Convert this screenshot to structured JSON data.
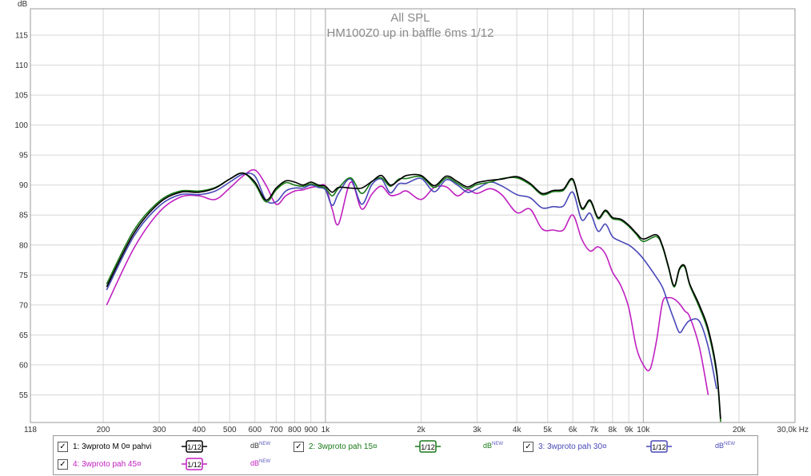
{
  "chart_data": {
    "type": "line",
    "title": "All SPL",
    "subtitle": "HM100Z0 up in baffle 6ms 1/12",
    "ylabel": "dB",
    "x_unit": "Hz",
    "xscale": "log",
    "xlim": [
      118,
      30000
    ],
    "ylim": [
      50,
      120
    ],
    "grid": true,
    "legend_position": "bottom",
    "y_ticks": [
      "115",
      "110",
      "105",
      "100",
      "95",
      "90",
      "85",
      "80",
      "75",
      "70",
      "65",
      "60",
      "55"
    ],
    "x_ticks": [
      {
        "v": 118,
        "label": "118"
      },
      {
        "v": 200,
        "label": "200"
      },
      {
        "v": 300,
        "label": "300"
      },
      {
        "v": 400,
        "label": "400"
      },
      {
        "v": 500,
        "label": "500"
      },
      {
        "v": 600,
        "label": "600"
      },
      {
        "v": 700,
        "label": "700"
      },
      {
        "v": 800,
        "label": "800"
      },
      {
        "v": 900,
        "label": "900"
      },
      {
        "v": 1000,
        "label": "1k"
      },
      {
        "v": 2000,
        "label": "2k"
      },
      {
        "v": 3000,
        "label": "3k"
      },
      {
        "v": 4000,
        "label": "4k"
      },
      {
        "v": 5000,
        "label": "5k"
      },
      {
        "v": 6000,
        "label": "6k"
      },
      {
        "v": 7000,
        "label": "7k"
      },
      {
        "v": 8000,
        "label": "8k"
      },
      {
        "v": 9000,
        "label": "9k"
      },
      {
        "v": 10000,
        "label": "10k"
      },
      {
        "v": 20000,
        "label": "20k"
      },
      {
        "v": 30000,
        "label": "30,0k Hz"
      }
    ],
    "series": [
      {
        "name": "1: 3wproto M 0¤ pahvi",
        "color": "#000000",
        "x": [
          205,
          250,
          300,
          350,
          400,
          450,
          500,
          550,
          600,
          650,
          700,
          750,
          800,
          850,
          900,
          950,
          1000,
          1050,
          1100,
          1200,
          1300,
          1400,
          1500,
          1600,
          1700,
          1800,
          2000,
          2200,
          2400,
          2600,
          2800,
          3000,
          3300,
          3600,
          4000,
          4400,
          4800,
          5200,
          5600,
          6000,
          6400,
          6800,
          7200,
          7600,
          8000,
          8500,
          9000,
          9500,
          10000,
          11000,
          11500,
          12000,
          12500,
          13000,
          13500,
          14000,
          15000,
          16000,
          17000,
          17500
        ],
        "y": [
          73,
          82,
          87,
          88.8,
          88.8,
          89.5,
          91,
          92,
          90.5,
          87.5,
          89.5,
          90.7,
          90.5,
          90,
          90.5,
          90,
          89.8,
          88.8,
          89.6,
          89.5,
          89.5,
          90.6,
          91.6,
          90,
          90.8,
          91.6,
          91.6,
          89.9,
          91.5,
          90.6,
          89.7,
          90.4,
          90.8,
          91,
          91.4,
          90.3,
          88.6,
          89.1,
          89.3,
          91,
          86.2,
          87.5,
          84.6,
          85.8,
          84.6,
          84.3,
          83.3,
          82,
          81,
          81.7,
          79.8,
          76.4,
          73.2,
          76.1,
          76.5,
          73.5,
          70,
          66,
          59,
          51
        ]
      },
      {
        "name": "2: 3wproto pah 15¤",
        "color": "#1a7a1a",
        "x": [
          205,
          250,
          300,
          350,
          400,
          450,
          500,
          550,
          600,
          650,
          700,
          750,
          800,
          850,
          900,
          950,
          1000,
          1050,
          1100,
          1200,
          1300,
          1400,
          1500,
          1600,
          1700,
          1800,
          2000,
          2200,
          2400,
          2600,
          2800,
          3000,
          3300,
          3600,
          4000,
          4400,
          4800,
          5200,
          5600,
          6000,
          6400,
          6800,
          7200,
          7600,
          8000,
          8500,
          9000,
          9500,
          10000,
          11000,
          11500,
          12000,
          12500,
          13000,
          13500,
          14000,
          15000,
          16000,
          17000,
          17500
        ],
        "y": [
          73.5,
          82.5,
          87.3,
          89,
          89,
          89.6,
          91,
          92,
          90.2,
          87.2,
          89.2,
          90.4,
          90,
          89.8,
          90.2,
          89.8,
          89.5,
          88.2,
          89.5,
          91.2,
          88.6,
          90.6,
          91.2,
          89.8,
          91,
          91.1,
          91.4,
          89.6,
          91.2,
          90.3,
          89.4,
          90.1,
          90.5,
          91.1,
          91.2,
          90.1,
          88.4,
          88.9,
          89.1,
          90.8,
          86,
          87.3,
          84.4,
          85.6,
          84.4,
          84.1,
          83.1,
          81.8,
          80.6,
          81.4,
          79.6,
          76.2,
          73,
          75.9,
          76.3,
          73.3,
          69.6,
          65.5,
          58.5,
          50.5
        ]
      },
      {
        "name": "3: 3wproto pah 30¤",
        "color": "#4848b8",
        "x": [
          205,
          250,
          300,
          350,
          400,
          450,
          500,
          550,
          600,
          650,
          700,
          750,
          800,
          850,
          900,
          950,
          1000,
          1050,
          1100,
          1200,
          1300,
          1400,
          1500,
          1600,
          1700,
          1800,
          2000,
          2200,
          2400,
          2600,
          2800,
          3000,
          3300,
          3600,
          4000,
          4400,
          4800,
          5200,
          5600,
          6000,
          6400,
          6800,
          7200,
          7600,
          8000,
          8500,
          9000,
          9500,
          10000,
          11000,
          11500,
          12000,
          12500,
          13000,
          13500,
          14000,
          15000,
          16000,
          17000
        ],
        "y": [
          72.5,
          81.5,
          86.5,
          88.4,
          88.4,
          89,
          90.5,
          91.8,
          91.5,
          87.5,
          87.2,
          89,
          89.5,
          89.5,
          90,
          89.6,
          89.2,
          86.6,
          88.6,
          91,
          86.8,
          90.1,
          91,
          88.7,
          90.2,
          90.3,
          91.1,
          88.9,
          90.9,
          90,
          88.8,
          89.4,
          90.5,
          89.8,
          88.4,
          87.9,
          86.2,
          86.4,
          86.5,
          88.8,
          84.2,
          85.3,
          82.3,
          83.5,
          81.4,
          80.6,
          80,
          79,
          77.7,
          74.6,
          72.9,
          70.1,
          67.5,
          65.4,
          66.5,
          67.4,
          67.3,
          63,
          56
        ]
      },
      {
        "name": "4: 3wproto pah 45¤",
        "color": "#c020c0",
        "x": [
          205,
          250,
          300,
          350,
          400,
          450,
          500,
          550,
          600,
          650,
          700,
          750,
          800,
          850,
          900,
          950,
          1000,
          1050,
          1100,
          1200,
          1300,
          1400,
          1500,
          1600,
          1700,
          1800,
          2000,
          2200,
          2400,
          2600,
          2800,
          3000,
          3300,
          3600,
          4000,
          4400,
          4800,
          5200,
          5600,
          6000,
          6400,
          6800,
          7200,
          7600,
          8000,
          8500,
          9000,
          9500,
          10000,
          10500,
          11000,
          11500,
          12000,
          12500,
          13000,
          13500,
          14000,
          15000,
          16000
        ],
        "y": [
          70,
          79.5,
          85.5,
          88,
          88.2,
          87.6,
          89.5,
          91.5,
          92.5,
          90,
          86.8,
          88.2,
          89,
          89.2,
          89.6,
          89.8,
          89.8,
          86,
          83.5,
          90.5,
          86,
          88.5,
          89.8,
          88.3,
          88.5,
          89,
          87.6,
          89.6,
          89.7,
          88.2,
          89.2,
          88.6,
          89.4,
          88.3,
          85.4,
          86,
          82.7,
          82.5,
          82.5,
          85,
          81,
          79,
          79.7,
          78.5,
          75.5,
          73.2,
          69.5,
          63,
          60,
          59.3,
          64,
          70.5,
          71.2,
          71,
          70.2,
          69,
          68,
          63,
          55
        ]
      }
    ]
  },
  "legend": [
    {
      "label": "1: 3wproto M 0¤ pahvi",
      "check": "✓",
      "smooth": "1/12",
      "db": "dB",
      "new": "NEW",
      "color": "#000000"
    },
    {
      "label": "2: 3wproto pah 15¤",
      "check": "✓",
      "smooth": "1/12",
      "db": "dB",
      "new": "NEW",
      "color": "#1a7a1a"
    },
    {
      "label": "3: 3wproto pah 30¤",
      "check": "✓",
      "smooth": "1/12",
      "db": "dB",
      "new": "NEW",
      "color": "#4848b8"
    },
    {
      "label": "4: 3wproto pah 45¤",
      "check": "✓",
      "smooth": "1/12",
      "db": "dB",
      "new": "NEW",
      "color": "#c020c0"
    }
  ]
}
